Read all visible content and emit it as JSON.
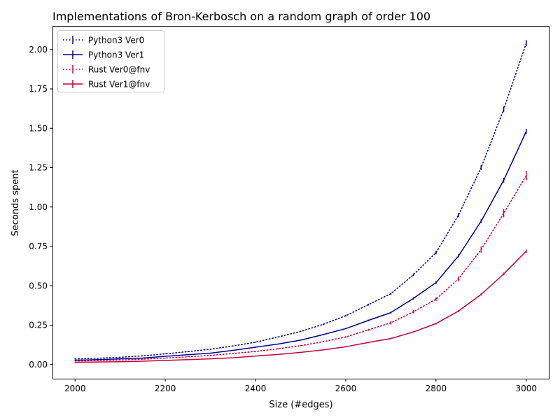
{
  "chart_data": {
    "type": "line",
    "title": "Implementations of Bron-Kerbosch on a random graph of order 100",
    "xlabel": "Size (#edges)",
    "ylabel": "Seconds spent",
    "xlim": [
      1950,
      3050
    ],
    "ylim": [
      -0.09,
      2.15
    ],
    "xticks": [
      2000,
      2200,
      2400,
      2600,
      2800,
      3000
    ],
    "xtick_labels": [
      "2000",
      "2200",
      "2400",
      "2600",
      "2800",
      "3000"
    ],
    "yticks": [
      0.0,
      0.25,
      0.5,
      0.75,
      1.0,
      1.25,
      1.5,
      1.75,
      2.0
    ],
    "ytick_labels": [
      "0.00",
      "0.25",
      "0.50",
      "0.75",
      "1.00",
      "1.25",
      "1.50",
      "1.75",
      "2.00"
    ],
    "grid": false,
    "legend_position": "top-left",
    "x": [
      2000,
      2050,
      2100,
      2150,
      2200,
      2250,
      2300,
      2350,
      2400,
      2450,
      2500,
      2550,
      2600,
      2650,
      2700,
      2750,
      2800,
      2850,
      2900,
      2950,
      3000
    ],
    "series": [
      {
        "name": "Python3 Ver0",
        "color": "#00008b",
        "style": "dotted",
        "values": [
          0.035,
          0.04,
          0.046,
          0.055,
          0.068,
          0.082,
          0.097,
          0.118,
          0.142,
          0.175,
          0.21,
          0.255,
          0.31,
          0.38,
          0.45,
          0.57,
          0.71,
          0.95,
          1.25,
          1.62,
          2.04
        ],
        "errors": [
          0.002,
          0.002,
          0.002,
          0.002,
          0.002,
          0.002,
          0.002,
          0.003,
          0.003,
          0.003,
          0.004,
          0.004,
          0.005,
          0.006,
          0.007,
          0.008,
          0.01,
          0.012,
          0.015,
          0.018,
          0.02
        ]
      },
      {
        "name": "Python3 Ver1",
        "color": "#00008b",
        "style": "solid",
        "values": [
          0.027,
          0.031,
          0.036,
          0.041,
          0.052,
          0.062,
          0.072,
          0.09,
          0.11,
          0.13,
          0.155,
          0.19,
          0.228,
          0.28,
          0.33,
          0.42,
          0.52,
          0.69,
          0.91,
          1.17,
          1.48
        ],
        "errors": [
          0.002,
          0.002,
          0.002,
          0.002,
          0.002,
          0.002,
          0.002,
          0.002,
          0.003,
          0.003,
          0.003,
          0.004,
          0.004,
          0.005,
          0.006,
          0.007,
          0.008,
          0.01,
          0.012,
          0.015,
          0.017
        ]
      },
      {
        "name": "Rust Ver0@fnv",
        "color": "#c8003c",
        "style": "dotted",
        "values": [
          0.022,
          0.025,
          0.029,
          0.034,
          0.041,
          0.049,
          0.058,
          0.07,
          0.083,
          0.1,
          0.12,
          0.145,
          0.175,
          0.22,
          0.265,
          0.335,
          0.415,
          0.545,
          0.73,
          0.96,
          1.2
        ],
        "errors": [
          0.002,
          0.002,
          0.002,
          0.002,
          0.002,
          0.002,
          0.002,
          0.002,
          0.003,
          0.003,
          0.003,
          0.004,
          0.005,
          0.006,
          0.012,
          0.01,
          0.012,
          0.015,
          0.02,
          0.025,
          0.03
        ]
      },
      {
        "name": "Rust Ver1@fnv",
        "color": "#c8003c",
        "style": "solid",
        "values": [
          0.014,
          0.016,
          0.018,
          0.021,
          0.026,
          0.031,
          0.036,
          0.043,
          0.054,
          0.064,
          0.077,
          0.093,
          0.113,
          0.14,
          0.165,
          0.207,
          0.26,
          0.34,
          0.445,
          0.575,
          0.72
        ],
        "errors": [
          0.001,
          0.001,
          0.001,
          0.001,
          0.001,
          0.001,
          0.001,
          0.001,
          0.002,
          0.002,
          0.002,
          0.002,
          0.003,
          0.003,
          0.004,
          0.004,
          0.005,
          0.006,
          0.007,
          0.008,
          0.01
        ]
      }
    ]
  }
}
